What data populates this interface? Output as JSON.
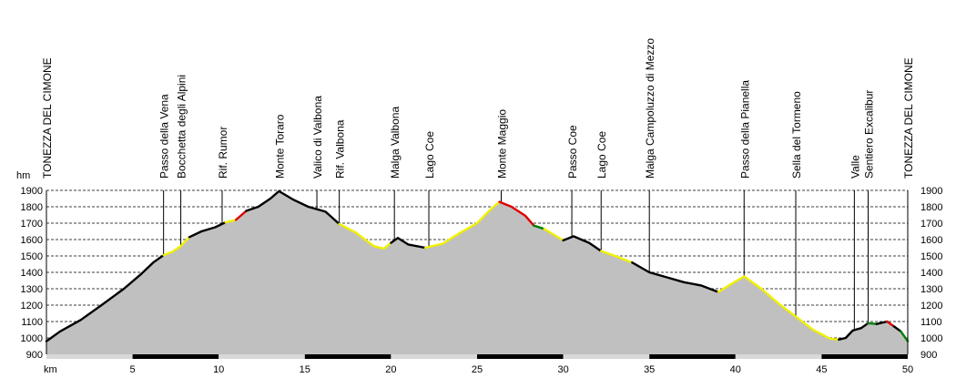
{
  "chart_data": {
    "type": "area",
    "title": "",
    "xlabel": "km",
    "ylabel": "hm",
    "xlim": [
      0,
      50
    ],
    "ylim": [
      900,
      1900
    ],
    "x_ticks": [
      5,
      10,
      15,
      20,
      25,
      30,
      35,
      40,
      45,
      50
    ],
    "y_ticks": [
      900,
      1000,
      1100,
      1200,
      1300,
      1400,
      1500,
      1600,
      1700,
      1800,
      1900
    ],
    "grid": true,
    "fill_color": "#c0c0c0",
    "surface_colors": {
      "black": "#000000",
      "yellow": "#f0f000",
      "red": "#e00000",
      "green": "#008000"
    },
    "profile": [
      {
        "x": 0.0,
        "y": 980
      },
      {
        "x": 0.8,
        "y": 1040
      },
      {
        "x": 2.0,
        "y": 1110
      },
      {
        "x": 3.2,
        "y": 1200
      },
      {
        "x": 4.5,
        "y": 1300
      },
      {
        "x": 5.5,
        "y": 1390
      },
      {
        "x": 6.2,
        "y": 1460
      },
      {
        "x": 6.8,
        "y": 1505
      },
      {
        "x": 7.3,
        "y": 1525
      },
      {
        "x": 7.8,
        "y": 1560
      },
      {
        "x": 8.3,
        "y": 1615
      },
      {
        "x": 9.0,
        "y": 1650
      },
      {
        "x": 9.8,
        "y": 1675
      },
      {
        "x": 10.4,
        "y": 1705
      },
      {
        "x": 11.0,
        "y": 1720
      },
      {
        "x": 11.6,
        "y": 1775
      },
      {
        "x": 12.3,
        "y": 1800
      },
      {
        "x": 13.0,
        "y": 1850
      },
      {
        "x": 13.5,
        "y": 1895
      },
      {
        "x": 14.3,
        "y": 1845
      },
      {
        "x": 15.2,
        "y": 1800
      },
      {
        "x": 16.2,
        "y": 1770
      },
      {
        "x": 17.0,
        "y": 1695
      },
      {
        "x": 18.0,
        "y": 1640
      },
      {
        "x": 19.0,
        "y": 1560
      },
      {
        "x": 19.6,
        "y": 1545
      },
      {
        "x": 20.0,
        "y": 1580
      },
      {
        "x": 20.4,
        "y": 1610
      },
      {
        "x": 21.0,
        "y": 1570
      },
      {
        "x": 22.0,
        "y": 1550
      },
      {
        "x": 23.0,
        "y": 1575
      },
      {
        "x": 24.0,
        "y": 1640
      },
      {
        "x": 25.0,
        "y": 1700
      },
      {
        "x": 25.8,
        "y": 1785
      },
      {
        "x": 26.3,
        "y": 1830
      },
      {
        "x": 27.0,
        "y": 1800
      },
      {
        "x": 27.8,
        "y": 1745
      },
      {
        "x": 28.3,
        "y": 1685
      },
      {
        "x": 28.9,
        "y": 1665
      },
      {
        "x": 29.6,
        "y": 1620
      },
      {
        "x": 30.0,
        "y": 1595
      },
      {
        "x": 30.6,
        "y": 1620
      },
      {
        "x": 31.5,
        "y": 1580
      },
      {
        "x": 32.2,
        "y": 1530
      },
      {
        "x": 33.0,
        "y": 1500
      },
      {
        "x": 34.0,
        "y": 1460
      },
      {
        "x": 35.0,
        "y": 1400
      },
      {
        "x": 36.0,
        "y": 1370
      },
      {
        "x": 37.0,
        "y": 1340
      },
      {
        "x": 38.0,
        "y": 1320
      },
      {
        "x": 39.0,
        "y": 1280
      },
      {
        "x": 40.0,
        "y": 1345
      },
      {
        "x": 40.5,
        "y": 1375
      },
      {
        "x": 41.5,
        "y": 1300
      },
      {
        "x": 42.5,
        "y": 1210
      },
      {
        "x": 43.5,
        "y": 1130
      },
      {
        "x": 44.5,
        "y": 1050
      },
      {
        "x": 45.5,
        "y": 995
      },
      {
        "x": 46.0,
        "y": 990
      },
      {
        "x": 46.4,
        "y": 1000
      },
      {
        "x": 46.8,
        "y": 1045
      },
      {
        "x": 47.3,
        "y": 1060
      },
      {
        "x": 47.7,
        "y": 1090
      },
      {
        "x": 48.2,
        "y": 1085
      },
      {
        "x": 48.8,
        "y": 1100
      },
      {
        "x": 49.2,
        "y": 1070
      },
      {
        "x": 49.6,
        "y": 1040
      },
      {
        "x": 50.0,
        "y": 980
      }
    ],
    "segments": [
      {
        "from": 0.0,
        "to": 6.8,
        "color": "black"
      },
      {
        "from": 6.8,
        "to": 8.3,
        "color": "yellow"
      },
      {
        "from": 8.3,
        "to": 10.4,
        "color": "black"
      },
      {
        "from": 10.4,
        "to": 11.0,
        "color": "yellow"
      },
      {
        "from": 11.0,
        "to": 11.6,
        "color": "red"
      },
      {
        "from": 11.6,
        "to": 17.0,
        "color": "black"
      },
      {
        "from": 17.0,
        "to": 20.0,
        "color": "yellow"
      },
      {
        "from": 20.0,
        "to": 22.0,
        "color": "black"
      },
      {
        "from": 22.0,
        "to": 26.3,
        "color": "yellow"
      },
      {
        "from": 26.3,
        "to": 27.0,
        "color": "red"
      },
      {
        "from": 27.0,
        "to": 27.8,
        "color": "red"
      },
      {
        "from": 27.8,
        "to": 28.3,
        "color": "red"
      },
      {
        "from": 28.3,
        "to": 28.9,
        "color": "green"
      },
      {
        "from": 28.9,
        "to": 30.0,
        "color": "yellow"
      },
      {
        "from": 30.0,
        "to": 32.2,
        "color": "black"
      },
      {
        "from": 32.2,
        "to": 34.0,
        "color": "yellow"
      },
      {
        "from": 34.0,
        "to": 39.0,
        "color": "black"
      },
      {
        "from": 39.0,
        "to": 46.0,
        "color": "yellow"
      },
      {
        "from": 46.0,
        "to": 47.7,
        "color": "black"
      },
      {
        "from": 47.7,
        "to": 48.2,
        "color": "green"
      },
      {
        "from": 48.2,
        "to": 48.8,
        "color": "black"
      },
      {
        "from": 48.8,
        "to": 49.2,
        "color": "red"
      },
      {
        "from": 49.2,
        "to": 49.6,
        "color": "black"
      },
      {
        "from": 49.6,
        "to": 50.0,
        "color": "green"
      }
    ],
    "waypoints": [
      {
        "name": "TONEZZA DEL CIMONE",
        "x": 0.0,
        "edge": true
      },
      {
        "name": "Passo della Vena",
        "x": 6.8
      },
      {
        "name": "Bocchetta degli Alpini",
        "x": 7.8
      },
      {
        "name": "Rif. Rumor",
        "x": 10.2
      },
      {
        "name": "Monte Toraro",
        "x": 13.5
      },
      {
        "name": "Valico di Valbona",
        "x": 15.7
      },
      {
        "name": "Rif. Valbona",
        "x": 17.0
      },
      {
        "name": "Malga Valbona",
        "x": 20.2
      },
      {
        "name": "Lago Coe",
        "x": 22.2
      },
      {
        "name": "Monte Maggio",
        "x": 26.4
      },
      {
        "name": "Passo Coe",
        "x": 30.5
      },
      {
        "name": "Lago Coe",
        "x": 32.2
      },
      {
        "name": "Malga Campoluzzo di Mezzo",
        "x": 35.0
      },
      {
        "name": "Passo della Pianella",
        "x": 40.5
      },
      {
        "name": "Sella del Tormeno",
        "x": 43.5
      },
      {
        "name": "Valle",
        "x": 46.9
      },
      {
        "name": "Sentiero Excalibur",
        "x": 47.7
      },
      {
        "name": "TONEZZA DEL CIMONE",
        "x": 50.0,
        "edge": true
      }
    ]
  }
}
